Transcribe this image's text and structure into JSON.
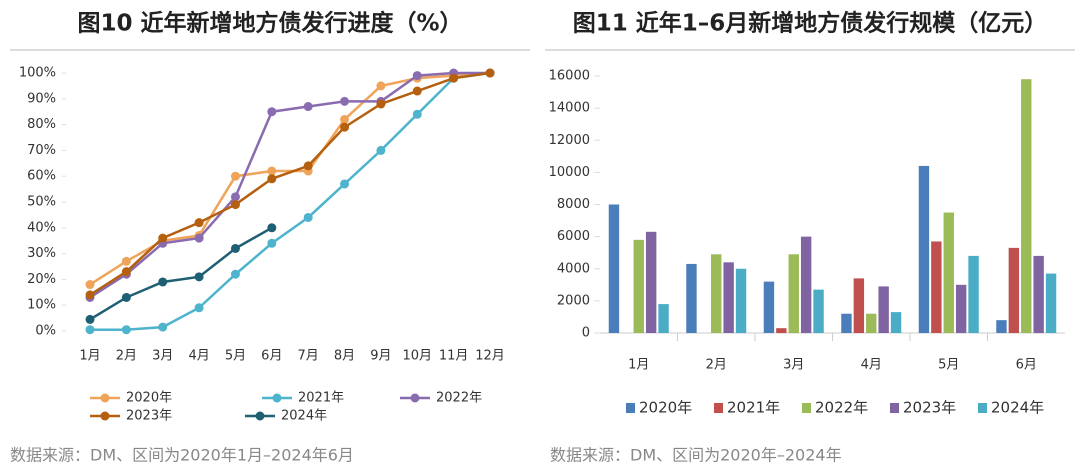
{
  "chart_data": [
    {
      "type": "line",
      "title": "图10 近年新增地方债发行进度（%）",
      "categories": [
        "1月",
        "2月",
        "3月",
        "4月",
        "5月",
        "6月",
        "7月",
        "8月",
        "9月",
        "10月",
        "11月",
        "12月"
      ],
      "ylim": [
        0,
        100
      ],
      "yticks": [
        {
          "value": 0,
          "label": "0%"
        },
        {
          "value": 10,
          "label": "10%"
        },
        {
          "value": 20,
          "label": "20%"
        },
        {
          "value": 30,
          "label": "30%"
        },
        {
          "value": 40,
          "label": "40%"
        },
        {
          "value": 50,
          "label": "50%"
        },
        {
          "value": 60,
          "label": "60%"
        },
        {
          "value": 70,
          "label": "70%"
        },
        {
          "value": 80,
          "label": "80%"
        },
        {
          "value": 90,
          "label": "90%"
        },
        {
          "value": 100,
          "label": "100%"
        }
      ],
      "series": [
        {
          "name": "2020年",
          "color": "#f0a45a",
          "values": [
            18,
            27,
            35,
            37,
            60,
            62,
            62,
            82,
            95,
            98,
            99,
            100
          ]
        },
        {
          "name": "2021年",
          "color": "#4eb3cc",
          "values": [
            0.5,
            0.5,
            1.5,
            9,
            22,
            34,
            44,
            57,
            70,
            84,
            98,
            100
          ]
        },
        {
          "name": "2022年",
          "color": "#8a6bb0",
          "values": [
            13,
            22,
            34,
            36,
            52,
            85,
            87,
            89,
            89,
            99,
            100,
            100
          ]
        },
        {
          "name": "2023年",
          "color": "#b5600f",
          "values": [
            14,
            23,
            36,
            42,
            49,
            59,
            64,
            79,
            88,
            93,
            98,
            100
          ]
        },
        {
          "name": "2024年",
          "color": "#1f5f73",
          "values": [
            4.5,
            13,
            19,
            21,
            32,
            40,
            null,
            null,
            null,
            null,
            null,
            null
          ]
        }
      ],
      "source": "数据来源：DM、区间为2020年1月–2024年6月"
    },
    {
      "type": "bar",
      "title": "图11 近年1–6月新增地方债发行规模（亿元）",
      "categories": [
        "1月",
        "2月",
        "3月",
        "4月",
        "5月",
        "6月"
      ],
      "ylim": [
        0,
        16000
      ],
      "yticks": [
        0,
        2000,
        4000,
        6000,
        8000,
        10000,
        12000,
        14000,
        16000
      ],
      "series": [
        {
          "name": "2020年",
          "color": "#4a7ebb",
          "values": [
            8000,
            4300,
            3200,
            1200,
            10400,
            800
          ]
        },
        {
          "name": "2021年",
          "color": "#c0504d",
          "values": [
            0,
            0,
            300,
            3400,
            5700,
            5300
          ]
        },
        {
          "name": "2022年",
          "color": "#9bbb59",
          "values": [
            5800,
            4900,
            4900,
            1200,
            7500,
            15800
          ]
        },
        {
          "name": "2023年",
          "color": "#8064a2",
          "values": [
            6300,
            4400,
            6000,
            2900,
            3000,
            4800
          ]
        },
        {
          "name": "2024年",
          "color": "#4bacc6",
          "values": [
            1800,
            4000,
            2700,
            1300,
            4800,
            3700
          ]
        }
      ],
      "source": "数据来源：DM、区间为2020年–2024年"
    }
  ]
}
